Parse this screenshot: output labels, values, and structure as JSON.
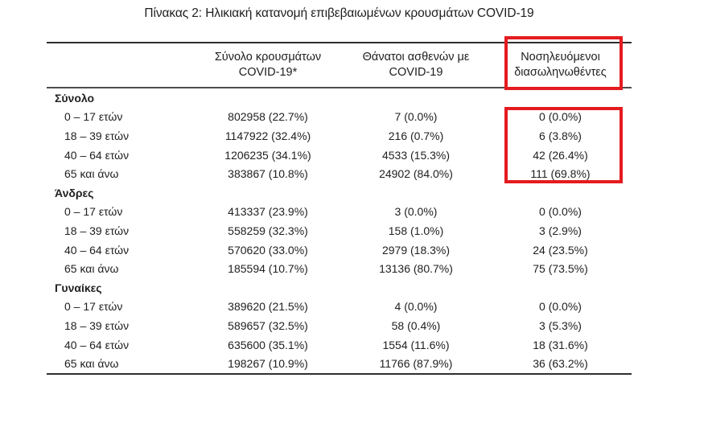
{
  "title": "Πίνακας 2: Ηλικιακή κατανομή επιβεβαιωμένων κρουσμάτων COVID-19",
  "table": {
    "header": {
      "cases": [
        "Σύνολο κρουσμάτων",
        "COVID-19*"
      ],
      "deaths": [
        "Θάνατοι ασθενών με",
        "COVID-19"
      ],
      "intubated": [
        "Νοσηλευόμενοι",
        "διασωληνωθέντες"
      ]
    },
    "sections": [
      {
        "label": "Σύνολο",
        "rows": [
          [
            "0 – 17 ετών",
            "802958 (22.7%)",
            "7 (0.0%)",
            "0 (0.0%)"
          ],
          [
            "18 – 39 ετών",
            "1147922 (32.4%)",
            "216 (0.7%)",
            "6 (3.8%)"
          ],
          [
            "40 – 64 ετών",
            "1206235 (34.1%)",
            "4533 (15.3%)",
            "42 (26.4%)"
          ],
          [
            "65 και άνω",
            "383867 (10.8%)",
            "24902 (84.0%)",
            "111 (69.8%)"
          ]
        ]
      },
      {
        "label": "Άνδρες",
        "rows": [
          [
            "0 – 17 ετών",
            "413337 (23.9%)",
            "3 (0.0%)",
            "0 (0.0%)"
          ],
          [
            "18 – 39 ετών",
            "558259 (32.3%)",
            "158 (1.0%)",
            "3 (2.9%)"
          ],
          [
            "40 – 64 ετών",
            "570620 (33.0%)",
            "2979 (18.3%)",
            "24 (23.5%)"
          ],
          [
            "65 και άνω",
            "185594 (10.7%)",
            "13136 (80.7%)",
            "75 (73.5%)"
          ]
        ]
      },
      {
        "label": "Γυναίκες",
        "rows": [
          [
            "0 – 17 ετών",
            "389620 (21.5%)",
            "4 (0.0%)",
            "0 (0.0%)"
          ],
          [
            "18 – 39 ετών",
            "589657 (32.5%)",
            "58 (0.4%)",
            "3 (5.3%)"
          ],
          [
            "40 – 64 ετών",
            "635600 (35.1%)",
            "1554 (11.6%)",
            "18 (31.6%)"
          ],
          [
            "65 και άνω",
            "198267 (10.9%)",
            "11766 (87.9%)",
            "36 (63.2%)"
          ]
        ]
      }
    ]
  },
  "annotations": {
    "highlight_color": "#e41b1f",
    "highlighted_regions": [
      "intubated-column-header",
      "intubated-values-total-section"
    ]
  }
}
